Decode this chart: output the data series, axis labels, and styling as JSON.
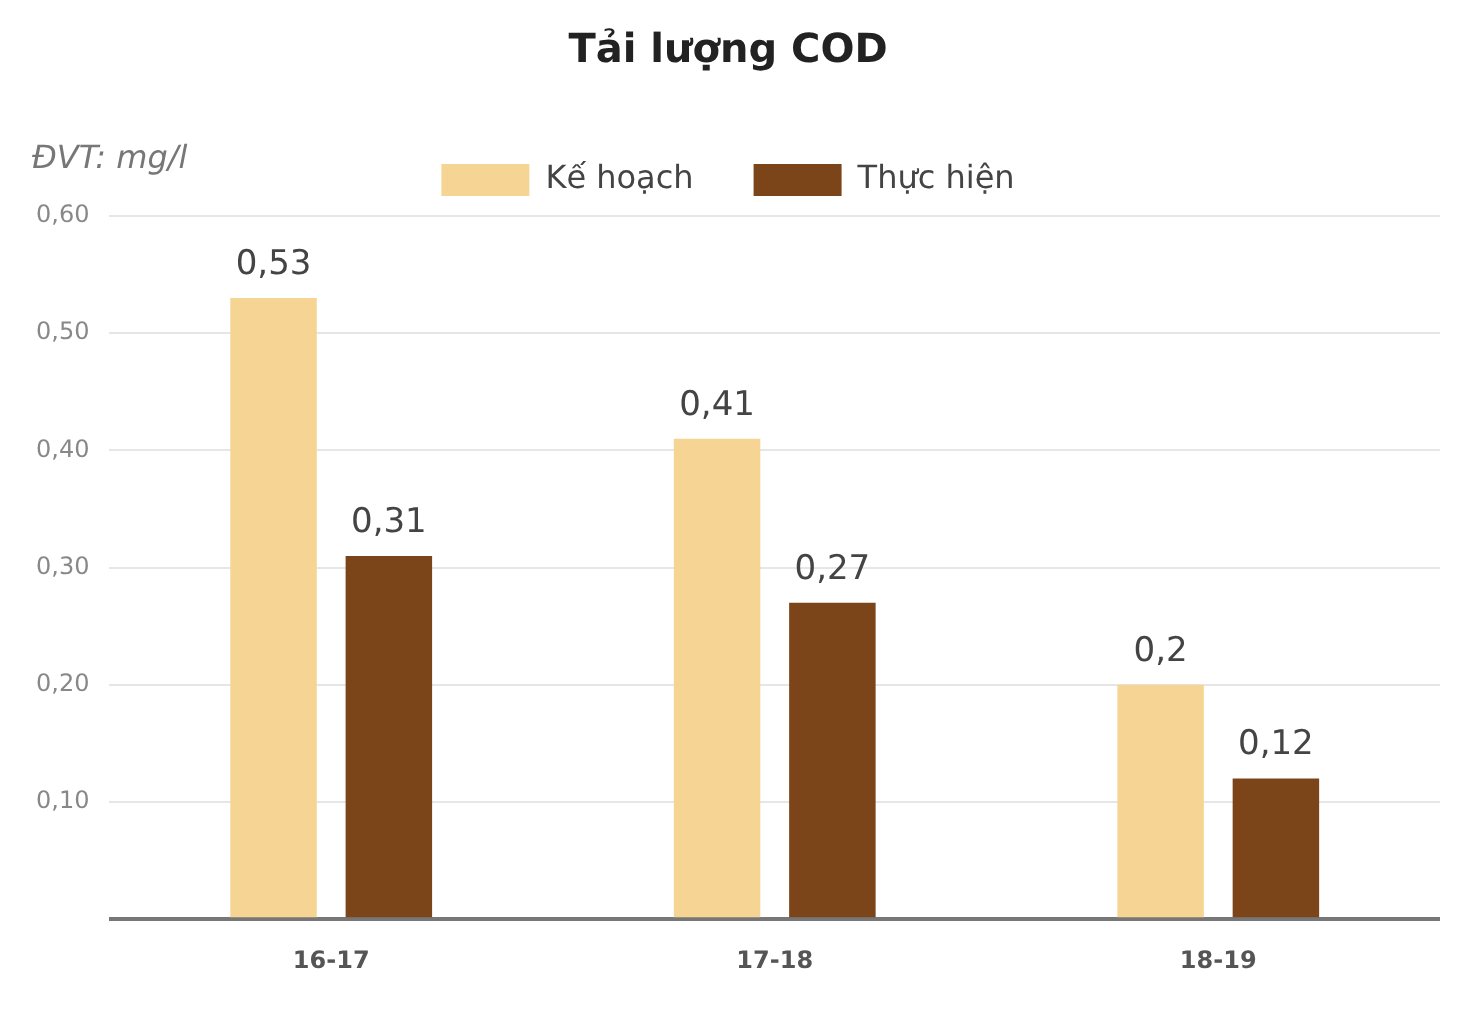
{
  "chart_data": {
    "type": "bar",
    "title": "Tải lượng COD",
    "ylabel": "ĐVT: mg/l",
    "categories": [
      "16-17",
      "17-18",
      "18-19"
    ],
    "series": [
      {
        "name": "Kế hoạch",
        "color": "#f6d594",
        "values": [
          0.53,
          0.41,
          0.2
        ],
        "value_labels": [
          "0,53",
          "0,41",
          "0,2"
        ]
      },
      {
        "name": "Thực hiện",
        "color": "#7b4419",
        "values": [
          0.31,
          0.27,
          0.12
        ],
        "value_labels": [
          "0,31",
          "0,27",
          "0,12"
        ]
      }
    ],
    "ylim": [
      0,
      0.6
    ],
    "yticks": [
      {
        "value": 0,
        "label": null
      },
      {
        "value": 0.1,
        "label": "0,10"
      },
      {
        "value": 0.2,
        "label": "0,20"
      },
      {
        "value": 0.3,
        "label": "0,30"
      },
      {
        "value": 0.4,
        "label": "0,40"
      },
      {
        "value": 0.5,
        "label": "0,50"
      },
      {
        "value": 0.6,
        "label": "0,60"
      }
    ],
    "grid": "y",
    "legend": "top"
  }
}
